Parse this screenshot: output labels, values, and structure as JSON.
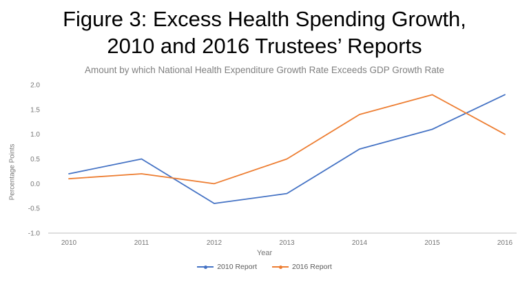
{
  "title_line1": "Figure 3: Excess Health Spending Growth,",
  "title_line2": "2010 and 2016 Trustees’ Reports",
  "chart_data": {
    "type": "line",
    "title": "Amount by which National Health Expenditure Growth Rate Exceeds GDP Growth Rate",
    "xlabel": "Year",
    "ylabel": "Percentage Points",
    "categories": [
      "2010",
      "2011",
      "2012",
      "2013",
      "2014",
      "2015",
      "2016"
    ],
    "series": [
      {
        "name": "2010 Report",
        "color": "#4472c4",
        "values": [
          0.2,
          0.5,
          -0.4,
          -0.2,
          0.7,
          1.1,
          1.8
        ]
      },
      {
        "name": "2016 Report",
        "color": "#ed7d31",
        "values": [
          0.1,
          0.2,
          0.0,
          0.5,
          1.4,
          1.8,
          1.0
        ]
      }
    ],
    "ylim": [
      -1.0,
      2.0
    ],
    "ytick_step": 0.5,
    "grid": false,
    "legend_position": "bottom"
  },
  "colors": {
    "axis_line": "#bfbfbf",
    "tick_text": "#757575",
    "title_text": "#000000"
  }
}
